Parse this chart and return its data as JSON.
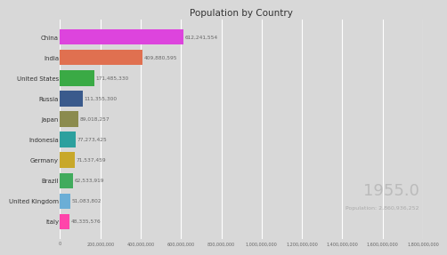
{
  "title": "Population by Country",
  "year_label": "1955.0",
  "total_label": "Population: 2,860,936,252",
  "countries": [
    "Italy",
    "United Kingdom",
    "Brazil",
    "Germany",
    "Indonesia",
    "Japan",
    "Russia",
    "United States",
    "India",
    "China"
  ],
  "values": [
    48335576,
    51083802,
    62533919,
    71537459,
    77273425,
    89018257,
    111355300,
    171485330,
    409880595,
    612241554
  ],
  "colors": [
    "#ff44aa",
    "#6baed6",
    "#41ab5d",
    "#c8a82a",
    "#2ca09e",
    "#8b8b4e",
    "#3a5a8c",
    "#3aaa45",
    "#e07050",
    "#dd44dd"
  ],
  "bg_color": "#d8d8d8",
  "xlim": [
    0,
    1800000000
  ],
  "bar_height": 0.75,
  "value_labels": [
    "48,335,576",
    "51,083,802",
    "62,533,919",
    "71,537,459",
    "77,273,425",
    "89,018,257",
    "111,355,300",
    "171,485,330",
    "409,880,595",
    "612,241,554"
  ],
  "xtick_values": [
    0,
    200000000,
    400000000,
    600000000,
    800000000,
    1000000000,
    1200000000,
    1400000000,
    1600000000,
    1800000000
  ],
  "xtick_labels": [
    "0",
    "200,000,000",
    "400,000,000",
    "600,000,000",
    "800,000,000",
    "1,000,000,000",
    "1,200,000,000",
    "1,400,000,000",
    "1,600,000,000",
    "1,800,000,000"
  ]
}
